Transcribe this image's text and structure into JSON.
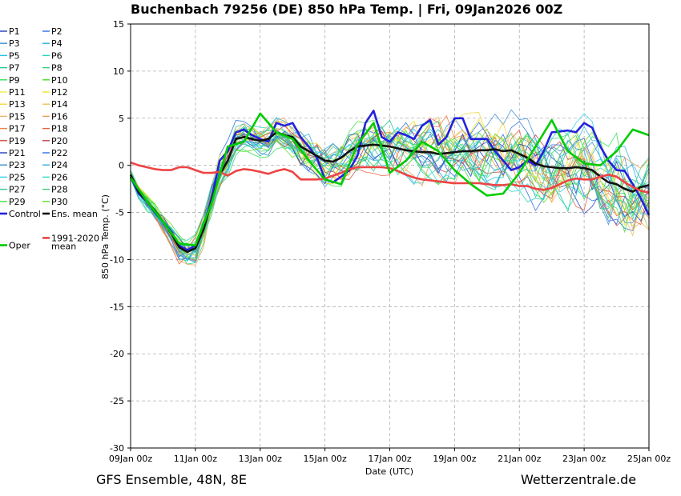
{
  "header": {
    "title": "Buchenbach 79256 (DE)  850 hPa Temp. | Fri, 09Jan2026 00Z"
  },
  "footer": {
    "left": "GFS Ensemble, 48N, 8E",
    "right": "Wetterzentrale.de"
  },
  "colors": {
    "control": "#2222dd",
    "ens_mean": "#111111",
    "climate": "#ee4444",
    "oper": "#00cc00",
    "grid": "#b0b0b0"
  },
  "chart_data": {
    "type": "line",
    "ylabel": "850 hPa Temp. (°C)",
    "xlabel": "Date (UTC)",
    "ylim": [
      -30,
      15
    ],
    "xlim": [
      0,
      64
    ],
    "x_unit": "6-hour steps from 09Jan2026 00Z",
    "yticks": [
      15,
      10,
      5,
      0,
      -5,
      -10,
      -15,
      -20,
      -25,
      -30
    ],
    "xticks": [
      {
        "x": 0,
        "label": "09Jan 00z"
      },
      {
        "x": 8,
        "label": "11Jan 00z"
      },
      {
        "x": 16,
        "label": "13Jan 00z"
      },
      {
        "x": 24,
        "label": "15Jan 00z"
      },
      {
        "x": 32,
        "label": "17Jan 00z"
      },
      {
        "x": 40,
        "label": "19Jan 00z"
      },
      {
        "x": 48,
        "label": "21Jan 00z"
      },
      {
        "x": 56,
        "label": "23Jan 00z"
      },
      {
        "x": 64,
        "label": "25Jan 00z"
      }
    ],
    "grid": true,
    "legend_position": "left, outside plot",
    "legend": [
      {
        "label": "P1",
        "color": "#1f3fbf"
      },
      {
        "label": "P2",
        "color": "#2f6fdf"
      },
      {
        "label": "P3",
        "color": "#3a8fd8"
      },
      {
        "label": "P4",
        "color": "#2ab0e0"
      },
      {
        "label": "P5",
        "color": "#20c4e8"
      },
      {
        "label": "P6",
        "color": "#28d0c0"
      },
      {
        "label": "P7",
        "color": "#20c890"
      },
      {
        "label": "P8",
        "color": "#30d080"
      },
      {
        "label": "P9",
        "color": "#30e050"
      },
      {
        "label": "P10",
        "color": "#40e020"
      },
      {
        "label": "P11",
        "color": "#e8f040"
      },
      {
        "label": "P12",
        "color": "#f0e020"
      },
      {
        "label": "P13",
        "color": "#f0d840"
      },
      {
        "label": "P14",
        "color": "#f0c050"
      },
      {
        "label": "P15",
        "color": "#f0b060"
      },
      {
        "label": "P16",
        "color": "#e8a050"
      },
      {
        "label": "P17",
        "color": "#f08040"
      },
      {
        "label": "P18",
        "color": "#e86040"
      },
      {
        "label": "P19",
        "color": "#d05040"
      },
      {
        "label": "P20",
        "color": "#c04040"
      },
      {
        "label": "P21",
        "color": "#2040c0"
      },
      {
        "label": "P22",
        "color": "#3070e0"
      },
      {
        "label": "P23",
        "color": "#3a90d0"
      },
      {
        "label": "P24",
        "color": "#30b0e8"
      },
      {
        "label": "P25",
        "color": "#30d0f0"
      },
      {
        "label": "P26",
        "color": "#30d8c8"
      },
      {
        "label": "P27",
        "color": "#30c898"
      },
      {
        "label": "P28",
        "color": "#38d070"
      },
      {
        "label": "P29",
        "color": "#40e040"
      },
      {
        "label": "P30",
        "color": "#58e028"
      },
      {
        "label": "Control",
        "color": "#2222dd"
      },
      {
        "label": "Ens. mean",
        "color": "#111111"
      },
      {
        "label": "1991-2020\nmean",
        "color": "#ee4444"
      },
      {
        "label": "Oper",
        "color": "#00cc00"
      }
    ],
    "series": [
      {
        "name": "Control",
        "color": "#2222dd",
        "x0": 0,
        "step": 1,
        "values": [
          -1.2,
          -3.0,
          -3.8,
          -5.0,
          -6.0,
          -7.0,
          -8.5,
          -9.0,
          -8.5,
          -6.5,
          -3.5,
          0.5,
          1.5,
          3.5,
          3.8,
          3.2,
          2.8,
          2.5,
          4.5,
          4.2,
          4.5,
          3.0,
          2.0,
          0.8,
          -1.5,
          -1.8,
          -1.2,
          -0.5,
          1.0,
          4.5,
          5.8,
          3.0,
          2.5,
          3.5,
          3.2,
          2.8,
          4.2,
          4.8,
          2.2,
          3.0,
          5.0,
          5.0,
          2.8,
          2.8,
          2.8,
          1.5,
          0.5,
          -0.5,
          -0.2,
          0.5,
          0.0,
          1.5,
          3.5,
          3.6,
          3.7,
          3.5,
          4.5,
          4.0,
          2.0,
          0.5,
          -0.5,
          -0.6,
          -2.0,
          -3.5,
          -5.3
        ]
      },
      {
        "name": "Ens. mean",
        "color": "#111111",
        "x0": 0,
        "step": 1,
        "values": [
          -1.0,
          -2.8,
          -3.8,
          -4.8,
          -6.0,
          -7.2,
          -8.7,
          -9.2,
          -8.8,
          -6.8,
          -3.8,
          -1.0,
          0.5,
          2.8,
          3.0,
          2.8,
          2.6,
          2.8,
          3.5,
          3.2,
          3.0,
          2.0,
          1.5,
          1.0,
          0.5,
          0.4,
          0.8,
          1.5,
          2.0,
          2.1,
          2.2,
          2.1,
          2.0,
          1.8,
          1.6,
          1.5,
          1.4,
          1.4,
          1.2,
          1.3,
          1.4,
          1.5,
          1.5,
          1.6,
          1.6,
          1.7,
          1.5,
          1.6,
          1.2,
          0.8,
          0.2,
          -0.1,
          -0.2,
          -0.3,
          -0.3,
          -0.2,
          -0.3,
          -0.5,
          -1.2,
          -1.8,
          -2.0,
          -2.5,
          -2.8,
          -2.3,
          -2.1
        ]
      },
      {
        "name": "1991-2020 mean",
        "color": "#ee4444",
        "x0": 0,
        "step": 1,
        "values": [
          0.3,
          0.0,
          -0.2,
          -0.4,
          -0.5,
          -0.5,
          -0.2,
          -0.2,
          -0.5,
          -0.8,
          -0.8,
          -0.7,
          -1.1,
          -0.6,
          -0.4,
          -0.5,
          -0.7,
          -0.9,
          -0.6,
          -0.4,
          -0.7,
          -1.5,
          -1.5,
          -1.5,
          -1.4,
          -1.1,
          -0.8,
          -0.4,
          -0.2,
          -0.2,
          -0.2,
          -0.2,
          -0.3,
          -0.6,
          -1.0,
          -1.3,
          -1.5,
          -1.6,
          -1.7,
          -1.8,
          -1.9,
          -1.9,
          -1.9,
          -1.9,
          -2.0,
          -2.1,
          -2.1,
          -2.0,
          -2.2,
          -2.2,
          -2.5,
          -2.6,
          -2.4,
          -2.0,
          -1.6,
          -1.4,
          -1.5,
          -1.5,
          -1.2,
          -1.0,
          -1.2,
          -1.8,
          -2.3,
          -2.7,
          -2.9
        ]
      },
      {
        "name": "Oper",
        "color": "#00cc00",
        "x0": 0,
        "step": 2,
        "values": [
          -1.3,
          -3.8,
          -6.0,
          -8.3,
          -8.5,
          -4.0,
          2.0,
          2.5,
          5.5,
          3.5,
          2.8,
          0.5,
          -1.5,
          -2.0,
          2.2,
          4.5,
          -0.8,
          0.5,
          2.5,
          1.5,
          -0.5,
          -2.0,
          -3.2,
          -3.0,
          -0.8,
          2.0,
          4.8,
          1.5,
          0.2,
          0.0,
          1.5,
          3.8,
          3.2
        ]
      }
    ]
  }
}
